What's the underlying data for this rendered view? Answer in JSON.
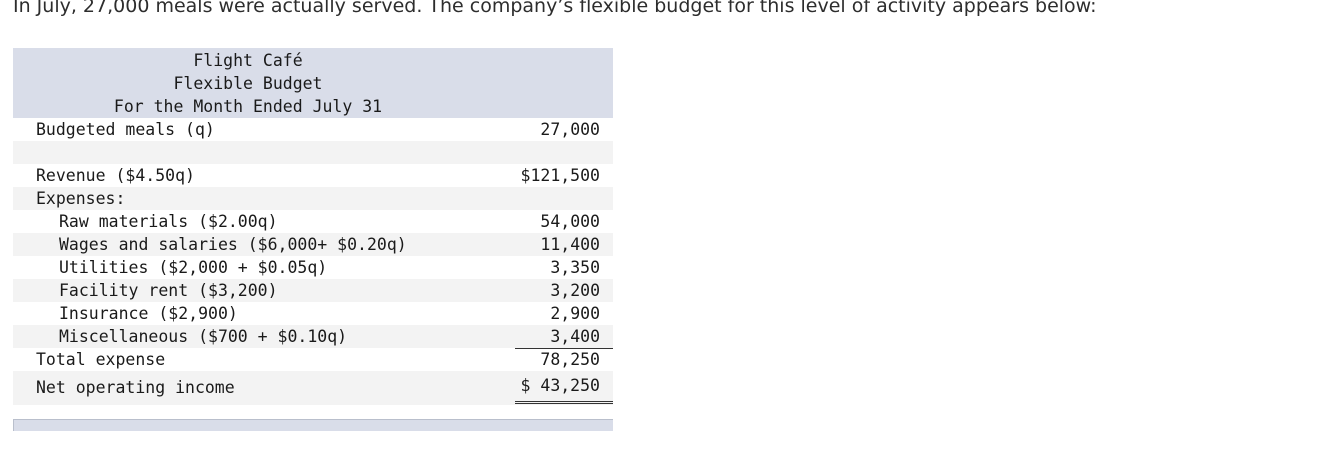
{
  "intro_text": "In July, 27,000 meals were actually served. The company’s flexible budget for this level of activity appears below:",
  "header": {
    "company": "Flight Café",
    "title": "Flexible Budget",
    "period": "For the Month Ended July 31"
  },
  "rows": {
    "budgeted_meals": {
      "label": "Budgeted meals (q)",
      "value": "27,000"
    },
    "revenue": {
      "label": "Revenue ($4.50q)",
      "value": "$121,500"
    },
    "expenses_heading": {
      "label": "Expenses:"
    },
    "raw_materials": {
      "label": "Raw materials ($2.00q)",
      "value": "54,000"
    },
    "wages": {
      "label": "Wages and salaries ($6,000+ $0.20q)",
      "value": "11,400"
    },
    "utilities": {
      "label": "Utilities ($2,000 + $0.05q)",
      "value": "3,350"
    },
    "facility_rent": {
      "label": "Facility rent ($3,200)",
      "value": "3,200"
    },
    "insurance": {
      "label": "Insurance ($2,900)",
      "value": "2,900"
    },
    "miscellaneous": {
      "label": "Miscellaneous ($700 + $0.10q)",
      "value": "3,400"
    },
    "total_expense": {
      "label": "Total expense",
      "value": "78,250"
    },
    "net_operating_income": {
      "label": "Net operating income",
      "value": "$ 43,250"
    }
  }
}
